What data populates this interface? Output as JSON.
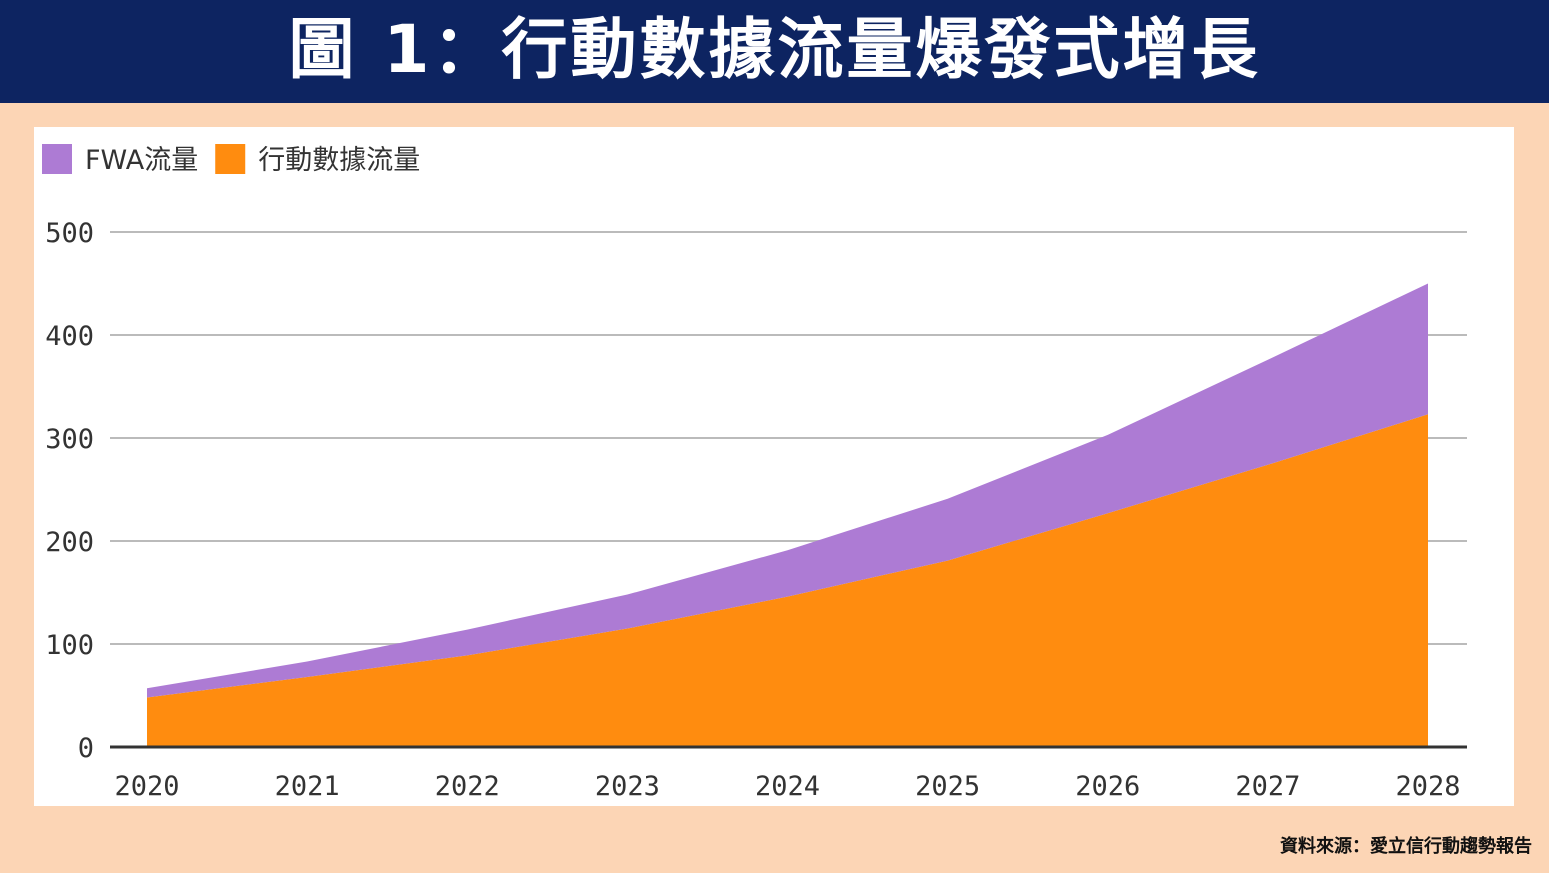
{
  "chart_data": {
    "type": "stacked_area",
    "title": "圖 1：行動數據流量爆發式增長",
    "source": "資料來源：愛立信行動趨勢報告",
    "categories": [
      "2020",
      "2021",
      "2022",
      "2023",
      "2024",
      "2025",
      "2026",
      "2027",
      "2028"
    ],
    "series": [
      {
        "name": "FWA流量",
        "color": "#ad7bd4",
        "values": [
          9,
          15,
          25,
          33,
          45,
          60,
          76,
          102,
          127
        ]
      },
      {
        "name": "行動數據流量",
        "color": "#ff8c0f",
        "values": [
          48,
          68,
          89,
          115,
          146,
          181,
          227,
          274,
          323
        ]
      }
    ],
    "ylim": [
      0,
      500
    ],
    "yticks": [
      0,
      100,
      200,
      300,
      400,
      500
    ],
    "grid": true
  }
}
